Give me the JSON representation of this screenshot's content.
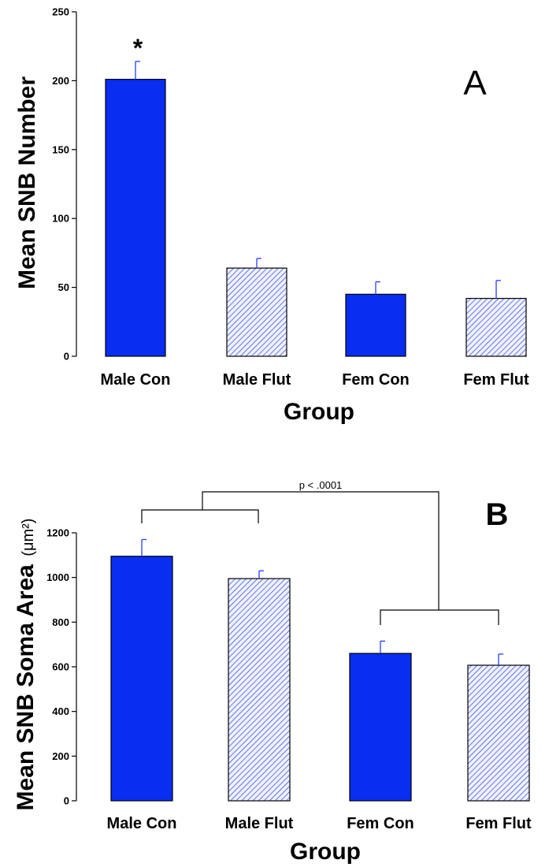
{
  "chart_data": [
    {
      "panel": "A",
      "type": "bar",
      "xlabel": "Group",
      "ylabel": "Mean SNB Number",
      "ylim": [
        0,
        250
      ],
      "yticks": [
        0,
        50,
        100,
        150,
        200,
        250
      ],
      "categories": [
        "Male Con",
        "Male Flut",
        "Fem Con",
        "Fem Flut"
      ],
      "values": [
        201,
        64,
        45,
        42
      ],
      "errors": [
        13,
        7,
        9,
        13
      ],
      "fill": [
        "solid",
        "hatched",
        "solid",
        "hatched"
      ],
      "annotations": [
        {
          "text": "*",
          "category": "Male Con"
        }
      ],
      "panel_label": "A"
    },
    {
      "panel": "B",
      "type": "bar",
      "xlabel": "Group",
      "ylabel": "Mean SNB Soma Area",
      "ylabel_unit": "(μm²)",
      "ylim": [
        0,
        1200
      ],
      "yticks": [
        0,
        200,
        400,
        600,
        800,
        1000,
        1200
      ],
      "categories": [
        "Male Con",
        "Male Flut",
        "Fem Con",
        "Fem Flut"
      ],
      "values": [
        1095,
        995,
        660,
        607
      ],
      "errors": [
        75,
        35,
        55,
        50
      ],
      "fill": [
        "solid",
        "hatched",
        "solid",
        "hatched"
      ],
      "annotations": [
        {
          "text": "p < .0001",
          "type": "bracket",
          "compares": [
            "Male Con + Male Flut",
            "Fem Con + Fem Flut"
          ]
        }
      ],
      "panel_label": "B"
    }
  ],
  "colors": {
    "bar": "#0a2df2",
    "hatch": "#1e3bd6",
    "hatch_bg": "#eef0ff",
    "error": "#2a3ff0"
  }
}
